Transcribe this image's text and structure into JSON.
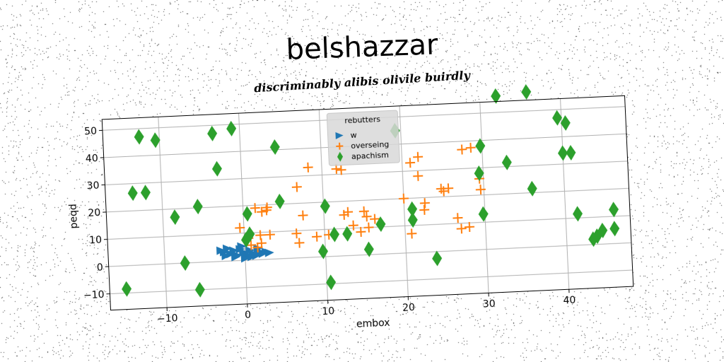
{
  "title": "belshazzar",
  "subtitle": "discriminably alibis olivile buirdly",
  "chart_data": {
    "type": "scatter",
    "xlabel": "embox",
    "ylabel": "peqd",
    "xlim": [
      -17,
      48
    ],
    "ylim": [
      -16,
      54
    ],
    "xticks": [
      -10,
      0,
      10,
      20,
      30,
      40
    ],
    "yticks": [
      -10,
      0,
      10,
      20,
      30,
      40,
      50
    ],
    "grid": true,
    "legend": {
      "title": "rebutters",
      "placement": "top-center"
    },
    "series": [
      {
        "name": "w",
        "marker": "triangle-right",
        "color": "#1f77b4",
        "points": [
          [
            -3.0,
            4.0
          ],
          [
            -2.6,
            3.4
          ],
          [
            -2.2,
            4.6
          ],
          [
            -1.8,
            2.6
          ],
          [
            -1.4,
            3.8
          ],
          [
            -1.0,
            2.0
          ],
          [
            -0.6,
            4.2
          ],
          [
            -0.2,
            3.0
          ],
          [
            0.2,
            1.8
          ],
          [
            0.6,
            3.6
          ],
          [
            1.0,
            2.4
          ],
          [
            1.4,
            1.6
          ],
          [
            1.8,
            3.0
          ],
          [
            2.2,
            2.2
          ],
          [
            2.6,
            2.8
          ],
          [
            3.0,
            2.4
          ],
          [
            -2.4,
            2.0
          ],
          [
            -1.2,
            1.4
          ],
          [
            0.0,
            0.8
          ],
          [
            0.8,
            1.2
          ],
          [
            -0.4,
            5.2
          ],
          [
            1.6,
            4.2
          ]
        ]
      },
      {
        "name": "overseing",
        "marker": "plus",
        "color": "#ff7f0e",
        "points": [
          [
            -0.5,
            12.0
          ],
          [
            1.5,
            19.0
          ],
          [
            2.3,
            17.5
          ],
          [
            2.9,
            18.0
          ],
          [
            3.0,
            19.0
          ],
          [
            2.0,
            9.0
          ],
          [
            3.2,
            9.0
          ],
          [
            0.8,
            5.5
          ],
          [
            1.6,
            4.5
          ],
          [
            2.1,
            6.0
          ],
          [
            6.5,
            9.0
          ],
          [
            6.8,
            5.5
          ],
          [
            7.4,
            15.5
          ],
          [
            6.8,
            26.0
          ],
          [
            8.3,
            33.0
          ],
          [
            9.0,
            7.5
          ],
          [
            10.5,
            8.0
          ],
          [
            11.8,
            32.0
          ],
          [
            12.4,
            31.5
          ],
          [
            12.5,
            15.0
          ],
          [
            13.0,
            16.0
          ],
          [
            13.6,
            11.0
          ],
          [
            14.5,
            8.5
          ],
          [
            15.0,
            16.0
          ],
          [
            15.3,
            14.0
          ],
          [
            15.5,
            10.0
          ],
          [
            16.3,
            13.0
          ],
          [
            20.0,
            20.0
          ],
          [
            20.8,
            7.0
          ],
          [
            21.0,
            33.0
          ],
          [
            22.0,
            35.0
          ],
          [
            21.9,
            28.0
          ],
          [
            22.5,
            15.5
          ],
          [
            22.6,
            18.0
          ],
          [
            24.7,
            23.0
          ],
          [
            25.0,
            22.0
          ],
          [
            25.6,
            23.0
          ],
          [
            26.6,
            12.0
          ],
          [
            27.0,
            8.0
          ],
          [
            27.5,
            37.0
          ],
          [
            28.0,
            8.5
          ],
          [
            28.6,
            37.5
          ],
          [
            29.5,
            26.0
          ],
          [
            29.6,
            22.0
          ],
          [
            0.5,
            8.0
          ]
        ]
      },
      {
        "name": "apachism",
        "marker": "thin-diamond",
        "color": "#2ca02c",
        "points": [
          [
            -12.5,
            47.0
          ],
          [
            -10.5,
            45.5
          ],
          [
            -13.6,
            26.5
          ],
          [
            -12.0,
            26.5
          ],
          [
            -14.9,
            -8.5
          ],
          [
            -8.5,
            17.0
          ],
          [
            -5.6,
            20.5
          ],
          [
            -7.5,
            0.0
          ],
          [
            -5.8,
            -10.0
          ],
          [
            -3.4,
            47.0
          ],
          [
            -1.0,
            48.5
          ],
          [
            -3.0,
            34.0
          ],
          [
            4.3,
            41.0
          ],
          [
            4.6,
            21.0
          ],
          [
            0.5,
            17.0
          ],
          [
            0.7,
            9.5
          ],
          [
            0.2,
            7.5
          ],
          [
            10.2,
            18.5
          ],
          [
            11.2,
            8.0
          ],
          [
            12.8,
            8.0
          ],
          [
            15.4,
            2.0
          ],
          [
            17.0,
            11.0
          ],
          [
            9.7,
            2.0
          ],
          [
            10.5,
            -9.5
          ],
          [
            19.3,
            45.0
          ],
          [
            21.0,
            16.0
          ],
          [
            21.0,
            12.0
          ],
          [
            23.8,
            -2.5
          ],
          [
            29.8,
            38.0
          ],
          [
            29.5,
            28.0
          ],
          [
            29.8,
            13.0
          ],
          [
            32.0,
            56.0
          ],
          [
            33.0,
            31.5
          ],
          [
            35.8,
            57.0
          ],
          [
            36.0,
            21.5
          ],
          [
            39.5,
            47.0
          ],
          [
            40.5,
            45.0
          ],
          [
            40.0,
            34.0
          ],
          [
            41.0,
            34.0
          ],
          [
            41.5,
            11.5
          ],
          [
            43.3,
            2.0
          ],
          [
            43.8,
            3.0
          ],
          [
            44.5,
            5.0
          ],
          [
            46.0,
            12.5
          ],
          [
            46.0,
            5.5
          ]
        ]
      }
    ]
  },
  "colors": {
    "background": "#ffffff",
    "grid": "#b0b0b0",
    "axes": "#000000",
    "noise": "#3a3a3a"
  }
}
